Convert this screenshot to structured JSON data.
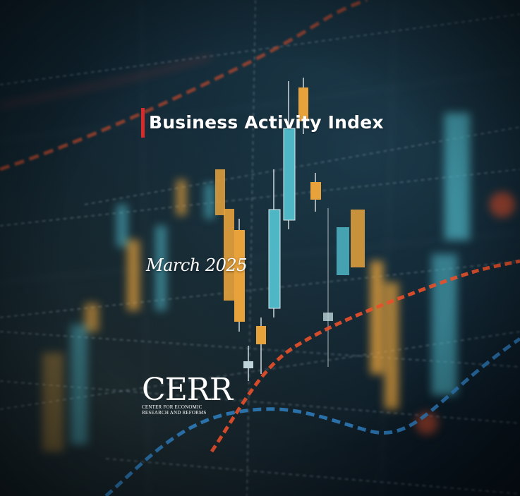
{
  "cover": {
    "title": "Business Activity Index",
    "date": "March 2025"
  },
  "logo": {
    "wordmark": "CERR",
    "subtitle_line1": "Center for Economic",
    "subtitle_line2": "Research and Reforms"
  },
  "colors": {
    "accent": "#d72a2a",
    "candle_up": "#4fb6c6",
    "candle_down": "#e8a23b",
    "trend_red": "#e8502a",
    "trend_blue": "#2f7fc1"
  }
}
